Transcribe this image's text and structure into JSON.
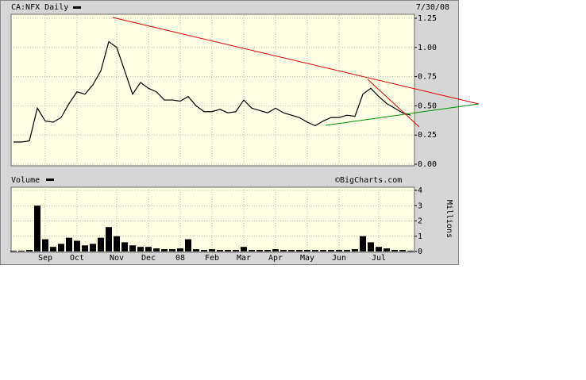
{
  "chart_data": [
    {
      "type": "line",
      "subtitle": "7/30/08",
      "series": [
        {
          "name": "CA:NFX Daily",
          "color": "#000000",
          "values": [
            0.19,
            0.19,
            0.2,
            0.48,
            0.37,
            0.36,
            0.4,
            0.52,
            0.62,
            0.6,
            0.68,
            0.8,
            1.05,
            1.0,
            0.8,
            0.6,
            0.7,
            0.65,
            0.62,
            0.55,
            0.55,
            0.54,
            0.58,
            0.5,
            0.45,
            0.45,
            0.47,
            0.44,
            0.45,
            0.55,
            0.48,
            0.46,
            0.44,
            0.48,
            0.44,
            0.42,
            0.4,
            0.36,
            0.33,
            0.37,
            0.4,
            0.4,
            0.42,
            0.41,
            0.6,
            0.65,
            0.58,
            0.52,
            0.48,
            0.44,
            0.42
          ]
        }
      ],
      "ylim": [
        0,
        1.25
      ],
      "yticks": [
        {
          "value": 0,
          "label": "0.00"
        },
        0.25,
        {
          "value": 0.5,
          "label": "0.50"
        },
        0.75,
        {
          "value": 1,
          "label": "1.00"
        },
        1.25
      ],
      "grid": true
    },
    {
      "type": "bar",
      "annotation": "©BigCharts.com",
      "y_label": "Millions",
      "categories": [
        null,
        null,
        null,
        null,
        "Sep",
        null,
        null,
        null,
        "Oct",
        null,
        null,
        null,
        null,
        "Nov",
        null,
        null,
        null,
        "Dec",
        null,
        null,
        null,
        "08",
        null,
        null,
        null,
        "Feb",
        null,
        null,
        null,
        "Mar",
        null,
        null,
        null,
        "Apr",
        null,
        null,
        null,
        "May",
        null,
        null,
        null,
        "Jun",
        null,
        null,
        null,
        null,
        "Jul",
        null,
        null,
        null,
        null
      ],
      "series": [
        {
          "name": "Volume",
          "color": "#000000",
          "values": [
            0.05,
            0.05,
            0.1,
            3.0,
            0.8,
            0.3,
            0.5,
            0.9,
            0.7,
            0.4,
            0.5,
            0.9,
            1.6,
            1.0,
            0.6,
            0.4,
            0.3,
            0.3,
            0.2,
            0.15,
            0.15,
            0.2,
            0.8,
            0.15,
            0.1,
            0.15,
            0.1,
            0.1,
            0.1,
            0.3,
            0.1,
            0.1,
            0.1,
            0.15,
            0.1,
            0.1,
            0.1,
            0.1,
            0.1,
            0.1,
            0.1,
            0.1,
            0.1,
            0.15,
            1.0,
            0.6,
            0.3,
            0.2,
            0.1,
            0.1,
            0.05
          ]
        }
      ],
      "ylim": [
        0,
        4
      ],
      "yticks": [
        0,
        1,
        2,
        3,
        4
      ],
      "grid": true
    }
  ]
}
